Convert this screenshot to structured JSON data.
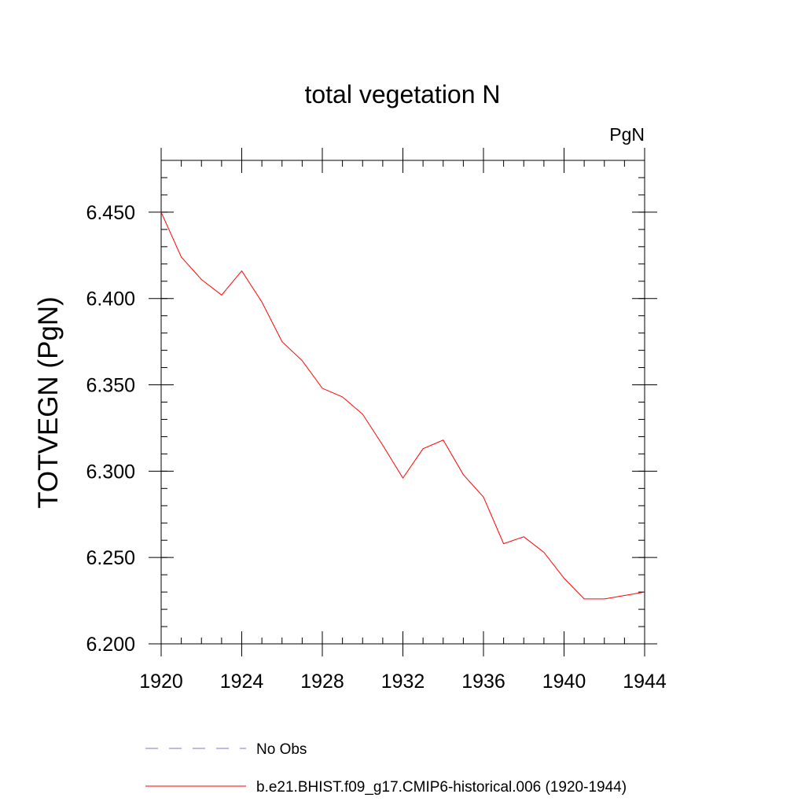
{
  "chart_data": {
    "type": "line",
    "title": "total vegetation N",
    "units_label": "PgN",
    "ylabel": "TOTVEGN  (PgN)",
    "xlabel": "",
    "xlim": [
      1920,
      1944
    ],
    "ylim": [
      6.2,
      6.48
    ],
    "x_ticks": [
      1920,
      1924,
      1928,
      1932,
      1936,
      1940,
      1944
    ],
    "x_tick_labels": [
      "1920",
      "1924",
      "1928",
      "1932",
      "1936",
      "1940",
      "1944"
    ],
    "y_ticks": [
      6.2,
      6.25,
      6.3,
      6.35,
      6.4,
      6.45
    ],
    "y_tick_labels": [
      "6.200",
      "6.250",
      "6.300",
      "6.350",
      "6.400",
      "6.450"
    ],
    "grid": false,
    "legend_position": "bottom",
    "series": [
      {
        "name": "b.e21.BHIST.f09_g17.CMIP6-historical.006 (1920-1944)",
        "color": "#ff0000",
        "dash": "solid",
        "x": [
          1920,
          1921,
          1922,
          1923,
          1924,
          1925,
          1926,
          1927,
          1928,
          1929,
          1930,
          1931,
          1932,
          1933,
          1934,
          1935,
          1936,
          1937,
          1938,
          1939,
          1940,
          1941,
          1942,
          1943,
          1944
        ],
        "y": [
          6.45,
          6.424,
          6.411,
          6.402,
          6.416,
          6.398,
          6.375,
          6.364,
          6.348,
          6.343,
          6.333,
          6.315,
          6.296,
          6.313,
          6.318,
          6.298,
          6.285,
          6.258,
          6.262,
          6.253,
          6.238,
          6.226,
          6.226,
          6.228,
          6.23
        ]
      },
      {
        "name": "No Obs",
        "color": "#7777cc",
        "dash": "dashed",
        "x": [],
        "y": []
      }
    ],
    "legend": [
      {
        "label": "No Obs",
        "color": "#7777cc",
        "dash": "dashed"
      },
      {
        "label": "b.e21.BHIST.f09_g17.CMIP6-historical.006 (1920-1944)",
        "color": "#ff0000",
        "dash": "solid"
      }
    ]
  }
}
